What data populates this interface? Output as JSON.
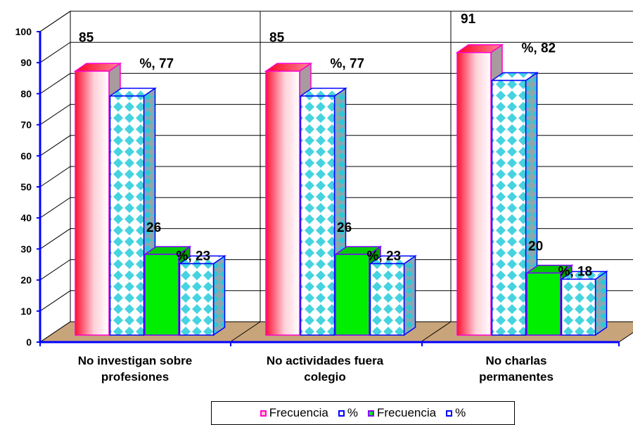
{
  "chart_data": {
    "type": "bar",
    "categories": [
      [
        "No investigan sobre",
        "profesiones"
      ],
      [
        "No actividades fuera",
        "colegio"
      ],
      [
        "No charlas",
        "permanentes"
      ]
    ],
    "series": [
      {
        "name": "Frecuencia",
        "values": [
          85,
          85,
          91
        ],
        "labels": [
          "85",
          "85",
          "91"
        ],
        "color": "#ff3355"
      },
      {
        "name": "%",
        "values": [
          77,
          77,
          82
        ],
        "labels": [
          "%, 77",
          "%, 77",
          "%, 82"
        ],
        "color": "#40e0e8"
      },
      {
        "name": "Frecuencia",
        "values": [
          26,
          26,
          20
        ],
        "labels": [
          "26",
          "26",
          "20"
        ],
        "color": "#00ee00"
      },
      {
        "name": "%",
        "values": [
          23,
          23,
          18
        ],
        "labels": [
          "%, 23",
          "%, 23",
          "%, 18"
        ],
        "color": "#40e0e8"
      }
    ],
    "ylim": [
      0,
      100
    ],
    "yticks": [
      "0",
      "10",
      "20",
      "30",
      "40",
      "50",
      "60",
      "70",
      "80",
      "90",
      "100"
    ],
    "grid": true,
    "legend_position": "bottom"
  },
  "legend": {
    "items": [
      {
        "label": "Frecuencia",
        "color": "#ff00cc"
      },
      {
        "label": "%",
        "color": "#0000ff"
      },
      {
        "label": "Frecuencia",
        "color": "#8800ff"
      },
      {
        "label": "%",
        "color": "#0000ff"
      }
    ]
  }
}
